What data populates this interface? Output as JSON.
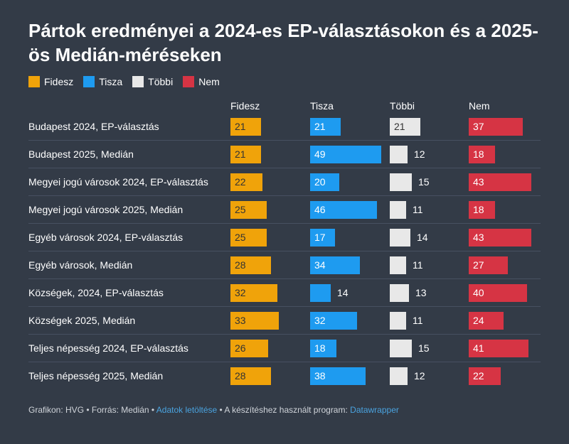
{
  "title": "Pártok eredményei a 2024-es EP-választásokon és a 2025-ös Medián-méréseken",
  "legend": [
    {
      "name": "Fidesz",
      "color": "#f0a30a"
    },
    {
      "name": "Tisza",
      "color": "#1e9bf0"
    },
    {
      "name": "Többi",
      "color": "#e8e8e8"
    },
    {
      "name": "Nem",
      "color": "#d63444"
    }
  ],
  "footer": {
    "prefix": "Grafikon: HVG • Forrás: Medián • ",
    "link1": "Adatok letöltése",
    "middle": " • A készítéshez használt program: ",
    "link2": "Datawrapper"
  },
  "chart_data": {
    "type": "bar",
    "title": "Pártok eredményei a 2024-es EP-választásokon és a 2025-ös Medián-méréseken",
    "categories": [
      "Budapest 2024, EP-választás",
      "Budapest 2025, Medián",
      "Megyei jogú városok 2024, EP-választás",
      "Megyei jogú városok 2025, Medián",
      "Egyéb városok 2024, EP-választás",
      "Egyéb városok, Medián",
      "Községek, 2024, EP-választás",
      "Községek 2025, Medián",
      "Teljes népesség 2024, EP-választás",
      "Teljes népesség 2025, Medián"
    ],
    "series": [
      {
        "name": "Fidesz",
        "color": "#f0a30a",
        "values": [
          21,
          21,
          22,
          25,
          25,
          28,
          32,
          33,
          26,
          28
        ]
      },
      {
        "name": "Tisza",
        "color": "#1e9bf0",
        "values": [
          21,
          49,
          20,
          46,
          17,
          34,
          14,
          32,
          18,
          38
        ]
      },
      {
        "name": "Többi",
        "color": "#e8e8e8",
        "values": [
          21,
          12,
          15,
          11,
          14,
          11,
          13,
          11,
          15,
          12
        ]
      },
      {
        "name": "Nem",
        "color": "#d63444",
        "values": [
          37,
          18,
          43,
          18,
          43,
          27,
          40,
          24,
          41,
          22
        ]
      }
    ]
  }
}
